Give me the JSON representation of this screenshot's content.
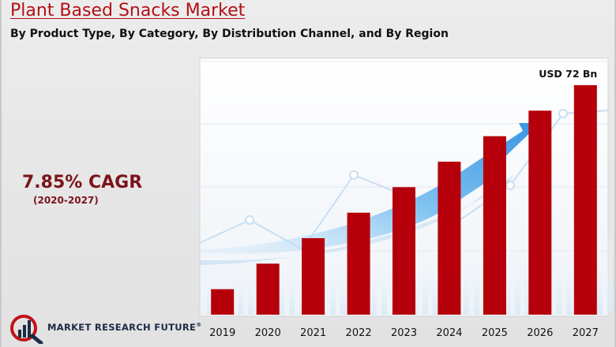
{
  "header": {
    "title": "Plant Based Snacks Market",
    "subtitle": "By Product Type, By Category, By Distribution Channel, and By Region"
  },
  "cagr": {
    "value": "7.85% CAGR",
    "period": "(2020-2027)"
  },
  "brand": {
    "name": "MARKET RESEARCH FUTURE",
    "reg": "®"
  },
  "colors": {
    "bar": "#b5000b",
    "title": "#b30f16",
    "cagr": "#7a141a",
    "arrow": "#3d9ee6"
  },
  "chart_data": {
    "type": "bar",
    "title": "",
    "xlabel": "",
    "ylabel": "",
    "categories": [
      "2019",
      "2020",
      "2021",
      "2022",
      "2023",
      "2024",
      "2025",
      "2026",
      "2027"
    ],
    "values": [
      8.0,
      16.0,
      24.0,
      32.0,
      40.0,
      48.0,
      56.0,
      64.0,
      72.0
    ],
    "ylim": [
      0,
      72
    ],
    "value_label": {
      "index": 8,
      "text": "USD 72 Bn"
    },
    "grid": true,
    "legend": "none"
  }
}
